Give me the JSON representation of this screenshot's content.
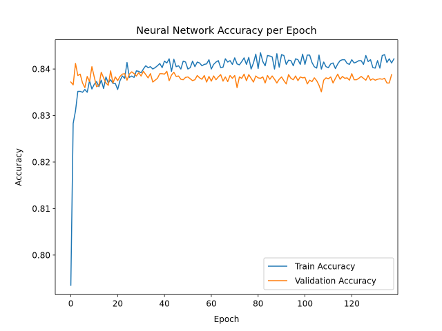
{
  "chart_data": {
    "type": "line",
    "title": "Neural Network Accuracy per Epoch",
    "xlabel": "Epoch",
    "ylabel": "Accuracy",
    "xlim": [
      -6.65,
      139.65
    ],
    "ylim": [
      0.7915,
      0.8463
    ],
    "x_ticks": [
      0,
      20,
      40,
      60,
      80,
      100,
      120
    ],
    "y_ticks": [
      0.8,
      0.81,
      0.82,
      0.83,
      0.84
    ],
    "y_tick_labels": [
      "0.80",
      "0.81",
      "0.82",
      "0.83",
      "0.84"
    ],
    "grid": false,
    "legend_position": "lower-right",
    "series": [
      {
        "name": "Train Accuracy",
        "color": "#1f77b4",
        "values": [
          0.7935,
          0.8283,
          0.831,
          0.8352,
          0.8352,
          0.835,
          0.8356,
          0.835,
          0.8375,
          0.8357,
          0.8367,
          0.8373,
          0.8362,
          0.8376,
          0.8358,
          0.8383,
          0.837,
          0.8377,
          0.8369,
          0.8369,
          0.8356,
          0.8375,
          0.8385,
          0.838,
          0.8414,
          0.8382,
          0.8385,
          0.8382,
          0.8396,
          0.8395,
          0.8392,
          0.84,
          0.8407,
          0.8403,
          0.8405,
          0.84,
          0.8403,
          0.8407,
          0.8412,
          0.8403,
          0.8417,
          0.8413,
          0.8422,
          0.8395,
          0.8421,
          0.8405,
          0.8407,
          0.84,
          0.8417,
          0.8415,
          0.84,
          0.8403,
          0.8417,
          0.8405,
          0.8415,
          0.8413,
          0.8407,
          0.841,
          0.8411,
          0.842,
          0.84,
          0.841,
          0.8415,
          0.8418,
          0.8403,
          0.8404,
          0.8422,
          0.8415,
          0.8418,
          0.841,
          0.8424,
          0.8411,
          0.8409,
          0.8416,
          0.8424,
          0.841,
          0.8425,
          0.84,
          0.8413,
          0.8432,
          0.8401,
          0.8435,
          0.8416,
          0.8407,
          0.8429,
          0.8428,
          0.8426,
          0.84,
          0.8433,
          0.8404,
          0.8431,
          0.8429,
          0.841,
          0.8419,
          0.8418,
          0.8407,
          0.8422,
          0.842,
          0.841,
          0.8432,
          0.841,
          0.843,
          0.843,
          0.8414,
          0.8405,
          0.8402,
          0.843,
          0.84,
          0.8415,
          0.8405,
          0.8403,
          0.8411,
          0.8413,
          0.8401,
          0.8411,
          0.8418,
          0.842,
          0.842,
          0.8412,
          0.841,
          0.842,
          0.8413,
          0.8415,
          0.8418,
          0.8418,
          0.841,
          0.8429,
          0.8416,
          0.842,
          0.8403,
          0.8402,
          0.8418,
          0.8402,
          0.8429,
          0.8431,
          0.8414,
          0.8422,
          0.8413,
          0.8422
        ]
      },
      {
        "name": "Validation Accuracy",
        "color": "#ff7f0e",
        "values": [
          0.8372,
          0.8366,
          0.8412,
          0.8386,
          0.8389,
          0.837,
          0.836,
          0.8384,
          0.8373,
          0.8405,
          0.8383,
          0.8362,
          0.8365,
          0.8393,
          0.8381,
          0.837,
          0.8365,
          0.8396,
          0.837,
          0.8383,
          0.8375,
          0.8384,
          0.8389,
          0.839,
          0.8376,
          0.8389,
          0.8394,
          0.839,
          0.8385,
          0.8392,
          0.8385,
          0.8395,
          0.8388,
          0.8381,
          0.839,
          0.8372,
          0.8376,
          0.838,
          0.839,
          0.839,
          0.8389,
          0.8395,
          0.8375,
          0.8387,
          0.8393,
          0.8384,
          0.8385,
          0.8378,
          0.8377,
          0.8382,
          0.8383,
          0.8379,
          0.8375,
          0.8377,
          0.8386,
          0.8381,
          0.8378,
          0.8386,
          0.8372,
          0.8384,
          0.8374,
          0.8385,
          0.8377,
          0.8383,
          0.8388,
          0.8374,
          0.8383,
          0.8373,
          0.8386,
          0.838,
          0.8386,
          0.836,
          0.8383,
          0.838,
          0.8389,
          0.8375,
          0.8388,
          0.838,
          0.8372,
          0.8385,
          0.8381,
          0.838,
          0.8383,
          0.837,
          0.8386,
          0.8378,
          0.8385,
          0.8378,
          0.837,
          0.8378,
          0.8383,
          0.8375,
          0.8368,
          0.8388,
          0.838,
          0.8377,
          0.8385,
          0.8375,
          0.8383,
          0.8381,
          0.8382,
          0.8368,
          0.8376,
          0.8373,
          0.8381,
          0.8375,
          0.8365,
          0.8351,
          0.8376,
          0.8381,
          0.8379,
          0.8383,
          0.837,
          0.838,
          0.8389,
          0.8378,
          0.8384,
          0.838,
          0.8381,
          0.8376,
          0.839,
          0.8377,
          0.8377,
          0.838,
          0.8384,
          0.838,
          0.8376,
          0.8386,
          0.8376,
          0.8379,
          0.8376,
          0.8378,
          0.8379,
          0.8378,
          0.838,
          0.837,
          0.837,
          0.8388
        ]
      }
    ]
  }
}
